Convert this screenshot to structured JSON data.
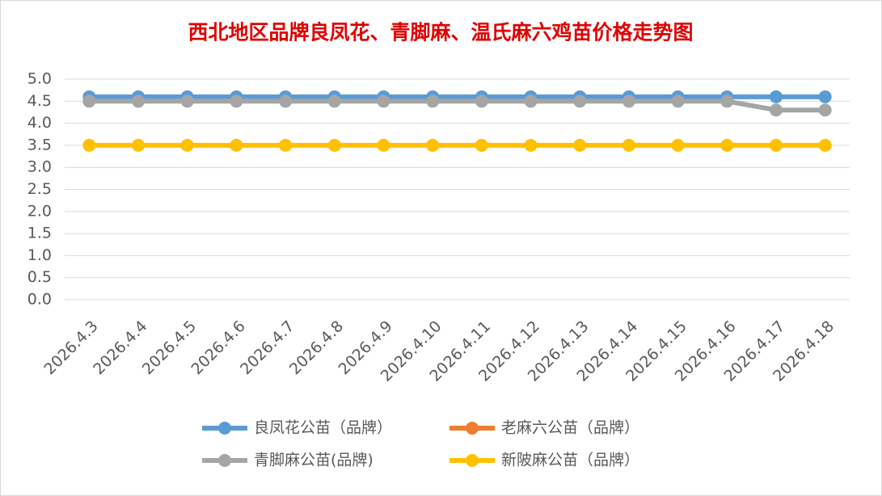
{
  "chart_data": {
    "type": "line",
    "title": "西北地区品牌良凤花、青脚麻、温氏麻六鸡苗价格走势图",
    "categories": [
      "2026.4.3",
      "2026.4.4",
      "2026.4.5",
      "2026.4.6",
      "2026.4.7",
      "2026.4.8",
      "2026.4.9",
      "2026.4.10",
      "2026.4.11",
      "2026.4.12",
      "2026.4.13",
      "2026.4.14",
      "2026.4.15",
      "2026.4.16",
      "2026.4.17",
      "2026.4.18"
    ],
    "series": [
      {
        "name": "良凤花公苗（品牌）",
        "color": "#5b9bd5",
        "values": [
          4.6,
          4.6,
          4.6,
          4.6,
          4.6,
          4.6,
          4.6,
          4.6,
          4.6,
          4.6,
          4.6,
          4.6,
          4.6,
          4.6,
          4.6,
          4.6
        ]
      },
      {
        "name": "老麻六公苗（品牌）",
        "color": "#ed7d31",
        "values": [
          null,
          null,
          null,
          null,
          null,
          null,
          null,
          null,
          null,
          null,
          null,
          null,
          null,
          null,
          null,
          null
        ]
      },
      {
        "name": "青脚麻公苗(品牌)",
        "color": "#a5a5a5",
        "values": [
          4.5,
          4.5,
          4.5,
          4.5,
          4.5,
          4.5,
          4.5,
          4.5,
          4.5,
          4.5,
          4.5,
          4.5,
          4.5,
          4.5,
          4.3,
          4.3
        ]
      },
      {
        "name": "新陂麻公苗（品牌）",
        "color": "#ffc000",
        "values": [
          3.5,
          3.5,
          3.5,
          3.5,
          3.5,
          3.5,
          3.5,
          3.5,
          3.5,
          3.5,
          3.5,
          3.5,
          3.5,
          3.5,
          3.5,
          3.5
        ]
      }
    ],
    "ylim": [
      0,
      5
    ],
    "yticks": [
      {
        "value": 0,
        "label": "0.0"
      },
      0.5,
      {
        "value": 1,
        "label": "1.0"
      },
      1.5,
      {
        "value": 2,
        "label": "2.0"
      },
      2.5,
      {
        "value": 3,
        "label": "3.0"
      },
      3.5,
      {
        "value": 4,
        "label": "4.0"
      },
      4.5,
      {
        "value": 5,
        "label": "5.0"
      }
    ],
    "grid": true
  }
}
